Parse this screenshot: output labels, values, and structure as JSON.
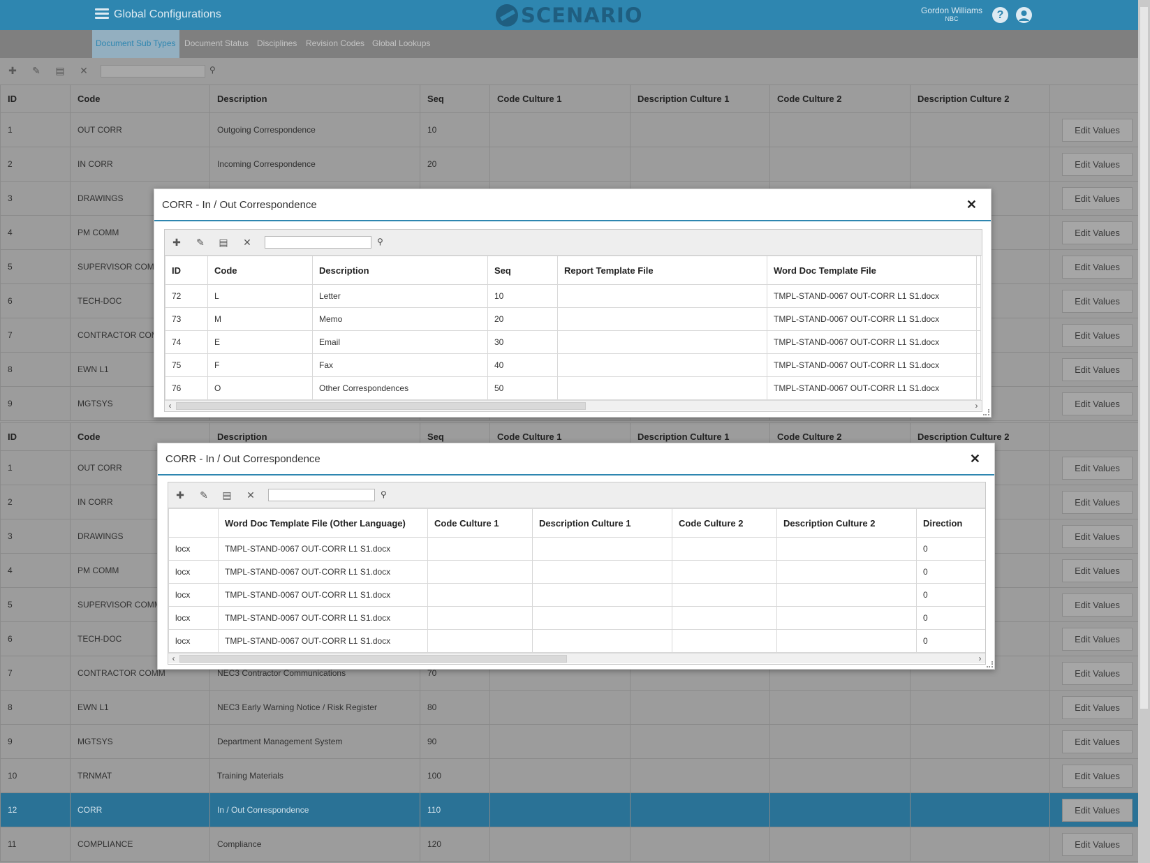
{
  "header": {
    "title": "Global Configurations",
    "logo_text": "SCENARIO",
    "user_name": "Gordon Williams",
    "user_org": "NBC",
    "help_glyph": "?",
    "icons": [
      "menu-icon",
      "help-icon",
      "user-icon"
    ]
  },
  "subnav": {
    "tabs": [
      {
        "label": "Document Sub Types",
        "active": true
      },
      {
        "label": "Document Status"
      },
      {
        "label": "Disciplines"
      },
      {
        "label": "Revision Codes"
      },
      {
        "label": "Global Lookups"
      }
    ]
  },
  "toolbar": {
    "icons": [
      "add-icon",
      "edit-icon",
      "save-icon",
      "cancel-icon",
      "search-icon"
    ],
    "glyphs": {
      "add": "✚",
      "edit": "✎",
      "save": "▤",
      "cancel": "✕",
      "search": "⚲"
    },
    "search_value": ""
  },
  "grid": {
    "columns": [
      "ID",
      "Code",
      "Description",
      "Seq",
      "Code Culture 1",
      "Description Culture 1",
      "Code Culture 2",
      "Description Culture 2",
      ""
    ],
    "action_label": "Edit Values",
    "top_rows": [
      [
        "1",
        "OUT CORR",
        "Outgoing Correspondence",
        "10"
      ],
      [
        "2",
        "IN CORR",
        "Incoming Correspondence",
        "20"
      ],
      [
        "3",
        "DRAWINGS",
        "",
        ""
      ],
      [
        "4",
        "PM COMM",
        "",
        ""
      ],
      [
        "5",
        "SUPERVISOR COMM",
        "",
        ""
      ],
      [
        "6",
        "TECH-DOC",
        "",
        ""
      ],
      [
        "7",
        "CONTRACTOR COMM",
        "",
        ""
      ],
      [
        "8",
        "EWN L1",
        "",
        ""
      ],
      [
        "9",
        "MGTSYS",
        "",
        ""
      ]
    ],
    "bottom_rows": [
      [
        "1",
        "OUT CORR",
        "",
        ""
      ],
      [
        "2",
        "IN CORR",
        "",
        ""
      ],
      [
        "3",
        "DRAWINGS",
        "",
        ""
      ],
      [
        "4",
        "PM COMM",
        "",
        ""
      ],
      [
        "5",
        "SUPERVISOR COMM",
        "",
        ""
      ],
      [
        "6",
        "TECH-DOC",
        "",
        ""
      ],
      [
        "7",
        "CONTRACTOR COMM",
        "NEC3 Contractor Communications",
        "70"
      ],
      [
        "8",
        "EWN L1",
        "NEC3 Early Warning Notice / Risk Register",
        "80"
      ],
      [
        "9",
        "MGTSYS",
        "Department Management System",
        "90"
      ],
      [
        "10",
        "TRNMAT",
        "Training Materials",
        "100"
      ],
      [
        "12",
        "CORR",
        "In / Out Correspondence",
        "110"
      ],
      [
        "11",
        "COMPLIANCE",
        "Compliance",
        "120"
      ]
    ],
    "selected_bottom_index": 10
  },
  "modal1": {
    "title": "CORR - In / Out Correspondence",
    "close_glyph": "✕",
    "search_value": "",
    "columns": [
      "ID",
      "Code",
      "Description",
      "Seq",
      "Report Template File",
      "Word Doc Template File"
    ],
    "rows": [
      [
        "72",
        "L",
        "Letter",
        "10",
        "",
        "TMPL-STAND-0067 OUT-CORR L1 S1.docx"
      ],
      [
        "73",
        "M",
        "Memo",
        "20",
        "",
        "TMPL-STAND-0067 OUT-CORR L1 S1.docx"
      ],
      [
        "74",
        "E",
        "Email",
        "30",
        "",
        "TMPL-STAND-0067 OUT-CORR L1 S1.docx"
      ],
      [
        "75",
        "F",
        "Fax",
        "40",
        "",
        "TMPL-STAND-0067 OUT-CORR L1 S1.docx"
      ],
      [
        "76",
        "O",
        "Other Correspondences",
        "50",
        "",
        "TMPL-STAND-0067 OUT-CORR L1 S1.docx"
      ]
    ]
  },
  "modal2": {
    "title": "CORR - In / Out Correspondence",
    "close_glyph": "✕",
    "search_value": "",
    "columns": [
      "",
      "Word Doc Template File (Other Language)",
      "Code Culture 1",
      "Description Culture 1",
      "Code Culture 2",
      "Description Culture 2",
      "Direction"
    ],
    "rows": [
      [
        "locx",
        "TMPL-STAND-0067 OUT-CORR L1 S1.docx",
        "",
        "",
        "",
        "",
        "0"
      ],
      [
        "locx",
        "TMPL-STAND-0067 OUT-CORR L1 S1.docx",
        "",
        "",
        "",
        "",
        "0"
      ],
      [
        "locx",
        "TMPL-STAND-0067 OUT-CORR L1 S1.docx",
        "",
        "",
        "",
        "",
        "0"
      ],
      [
        "locx",
        "TMPL-STAND-0067 OUT-CORR L1 S1.docx",
        "",
        "",
        "",
        "",
        "0"
      ],
      [
        "locx",
        "TMPL-STAND-0067 OUT-CORR L1 S1.docx",
        "",
        "",
        "",
        "",
        "0"
      ]
    ]
  },
  "colors": {
    "accent": "#2e86b0",
    "selected_row": "#2a7296",
    "overlay_grey": "#9c9c9c"
  }
}
